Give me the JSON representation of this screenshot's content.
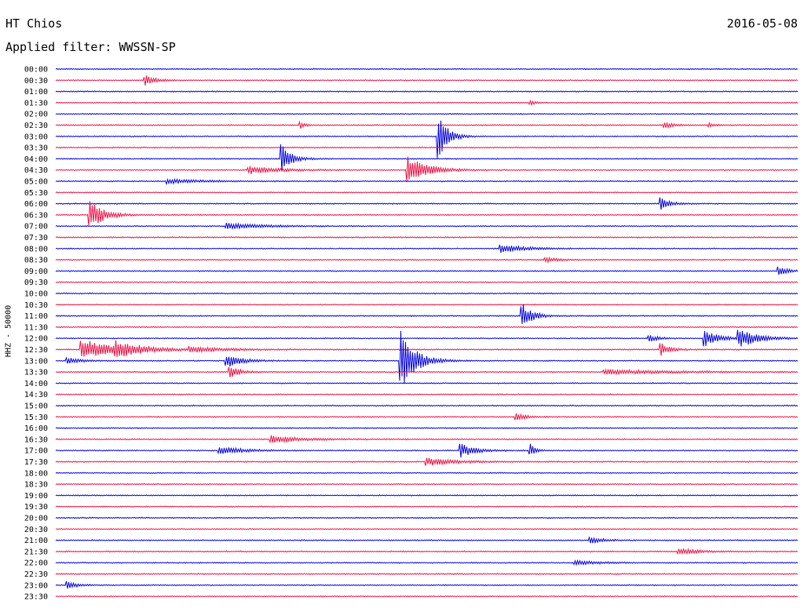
{
  "header": {
    "station": "HT Chios",
    "date": "2016-05-08",
    "filter_label": "Applied filter: WWSSN-SP"
  },
  "chart_data": {
    "type": "line",
    "subtype": "helicorder",
    "ylabel": "HHZ - 50000",
    "row_labels": [
      "00:00",
      "00:30",
      "01:00",
      "01:30",
      "02:00",
      "02:30",
      "03:00",
      "03:30",
      "04:00",
      "04:30",
      "05:00",
      "05:30",
      "06:00",
      "06:30",
      "07:00",
      "07:30",
      "08:00",
      "08:30",
      "09:00",
      "09:30",
      "10:00",
      "10:30",
      "11:00",
      "11:30",
      "12:00",
      "12:30",
      "13:00",
      "13:30",
      "14:00",
      "14:30",
      "15:00",
      "15:30",
      "16:00",
      "16:30",
      "17:00",
      "17:30",
      "18:00",
      "18:30",
      "19:00",
      "19:30",
      "20:00",
      "20:30",
      "21:00",
      "21:30",
      "22:00",
      "22:30",
      "23:00",
      "23:30"
    ],
    "colors": [
      "#0000e0",
      "#ee1144"
    ],
    "events": [
      {
        "row": 1,
        "pos": 0.12,
        "amp": 7,
        "dur": 0.02
      },
      {
        "row": 3,
        "pos": 0.64,
        "amp": 3,
        "dur": 0.01
      },
      {
        "row": 5,
        "pos": 0.33,
        "amp": 4,
        "dur": 0.01
      },
      {
        "row": 5,
        "pos": 0.82,
        "amp": 4,
        "dur": 0.02
      },
      {
        "row": 5,
        "pos": 0.88,
        "amp": 3,
        "dur": 0.01
      },
      {
        "row": 6,
        "pos": 0.515,
        "amp": 30,
        "dur": 0.02
      },
      {
        "row": 8,
        "pos": 0.305,
        "amp": 18,
        "dur": 0.02
      },
      {
        "row": 9,
        "pos": 0.26,
        "amp": 5,
        "dur": 0.06
      },
      {
        "row": 9,
        "pos": 0.475,
        "amp": 18,
        "dur": 0.04
      },
      {
        "row": 10,
        "pos": 0.15,
        "amp": 3,
        "dur": 0.07
      },
      {
        "row": 12,
        "pos": 0.815,
        "amp": 8,
        "dur": 0.02
      },
      {
        "row": 13,
        "pos": 0.045,
        "amp": 20,
        "dur": 0.03
      },
      {
        "row": 14,
        "pos": 0.23,
        "amp": 4,
        "dur": 0.07
      },
      {
        "row": 16,
        "pos": 0.6,
        "amp": 5,
        "dur": 0.05
      },
      {
        "row": 17,
        "pos": 0.66,
        "amp": 3,
        "dur": 0.03
      },
      {
        "row": 18,
        "pos": 0.975,
        "amp": 5,
        "dur": 0.02
      },
      {
        "row": 22,
        "pos": 0.628,
        "amp": 18,
        "dur": 0.02
      },
      {
        "row": 24,
        "pos": 0.8,
        "amp": 4,
        "dur": 0.02
      },
      {
        "row": 24,
        "pos": 0.875,
        "amp": 10,
        "dur": 0.03
      },
      {
        "row": 24,
        "pos": 0.92,
        "amp": 12,
        "dur": 0.04
      },
      {
        "row": 25,
        "pos": 0.035,
        "amp": 14,
        "dur": 0.06
      },
      {
        "row": 25,
        "pos": 0.08,
        "amp": 8,
        "dur": 0.06
      },
      {
        "row": 25,
        "pos": 0.18,
        "amp": 3,
        "dur": 0.08
      },
      {
        "row": 25,
        "pos": 0.815,
        "amp": 9,
        "dur": 0.02
      },
      {
        "row": 26,
        "pos": 0.015,
        "amp": 4,
        "dur": 0.03
      },
      {
        "row": 26,
        "pos": 0.23,
        "amp": 9,
        "dur": 0.03
      },
      {
        "row": 26,
        "pos": 0.465,
        "amp": 40,
        "dur": 0.03
      },
      {
        "row": 27,
        "pos": 0.235,
        "amp": 8,
        "dur": 0.02
      },
      {
        "row": 27,
        "pos": 0.74,
        "amp": 3,
        "dur": 0.15
      },
      {
        "row": 31,
        "pos": 0.62,
        "amp": 5,
        "dur": 0.02
      },
      {
        "row": 33,
        "pos": 0.29,
        "amp": 5,
        "dur": 0.06
      },
      {
        "row": 34,
        "pos": 0.22,
        "amp": 5,
        "dur": 0.05
      },
      {
        "row": 34,
        "pos": 0.545,
        "amp": 9,
        "dur": 0.03
      },
      {
        "row": 34,
        "pos": 0.64,
        "amp": 8,
        "dur": 0.01
      },
      {
        "row": 35,
        "pos": 0.5,
        "amp": 5,
        "dur": 0.06
      },
      {
        "row": 42,
        "pos": 0.72,
        "amp": 4,
        "dur": 0.03
      },
      {
        "row": 43,
        "pos": 0.84,
        "amp": 4,
        "dur": 0.04
      },
      {
        "row": 44,
        "pos": 0.7,
        "amp": 3,
        "dur": 0.05
      },
      {
        "row": 46,
        "pos": 0.015,
        "amp": 5,
        "dur": 0.02
      }
    ]
  }
}
